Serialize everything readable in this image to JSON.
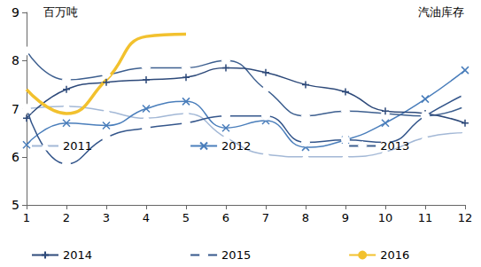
{
  "chart_data": {
    "type": "line",
    "title": "汽油库存",
    "y_label": "百万吨",
    "categories": [
      "1",
      "2",
      "3",
      "4",
      "5",
      "6",
      "7",
      "8",
      "9",
      "10",
      "11",
      "12"
    ],
    "ylim": [
      5,
      9
    ],
    "yticks": [
      5,
      6,
      7,
      8,
      9
    ],
    "grid": false,
    "legend": "bottom",
    "series": [
      {
        "name": "2011",
        "color": "#a3b8d6",
        "marker": "triangle",
        "line_style": "smooth",
        "values": [
          7.0,
          7.05,
          6.95,
          6.8,
          6.9,
          6.4,
          6.05,
          6.0,
          6.0,
          6.1,
          6.4,
          6.5
        ]
      },
      {
        "name": "2012",
        "color": "#4a7ebb",
        "marker": "x",
        "line_style": "smooth",
        "values": [
          6.25,
          6.7,
          6.65,
          7.0,
          7.15,
          6.6,
          6.75,
          6.2,
          6.35,
          6.7,
          7.2,
          7.8
        ]
      },
      {
        "name": "2013",
        "color": "#3d5f8f",
        "marker": "diamond",
        "line_style": "smooth",
        "values": [
          8.2,
          7.6,
          7.7,
          7.85,
          7.85,
          8.0,
          7.4,
          6.85,
          6.95,
          6.9,
          6.85,
          7.05
        ]
      },
      {
        "name": "2014",
        "color": "#2e4a7a",
        "marker": "plus",
        "line_style": "smooth",
        "values": [
          6.8,
          7.4,
          7.55,
          7.6,
          7.65,
          7.85,
          7.75,
          7.5,
          7.35,
          6.95,
          6.9,
          6.7
        ]
      },
      {
        "name": "2015",
        "color": "#34568b",
        "marker": "circle",
        "line_style": "smooth",
        "values": [
          7.0,
          5.85,
          6.4,
          6.6,
          6.7,
          6.85,
          6.85,
          6.3,
          6.35,
          6.3,
          6.85,
          7.3
        ]
      },
      {
        "name": "2016",
        "color": "#f2c12e",
        "marker": "none",
        "line_style": "smooth",
        "values": [
          7.4,
          6.9,
          7.6,
          8.5,
          8.55,
          null,
          null,
          null,
          null,
          null,
          null,
          null
        ]
      }
    ]
  }
}
